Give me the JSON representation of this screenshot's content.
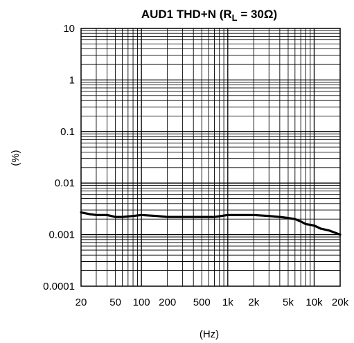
{
  "chart_data": {
    "type": "line",
    "title": {
      "prefix": "AUD1 THD+N (R",
      "subscript": "L",
      "suffix": " = 30Ω)"
    },
    "xlabel": "(Hz)",
    "ylabel": "(%)",
    "x_scale": "log",
    "y_scale": "log",
    "xlim": [
      20,
      20000
    ],
    "ylim": [
      0.0001,
      10
    ],
    "grid": true,
    "x_ticks": [
      {
        "value": 20,
        "label": "20"
      },
      {
        "value": 50,
        "label": "50"
      },
      {
        "value": 100,
        "label": "100"
      },
      {
        "value": 200,
        "label": "200"
      },
      {
        "value": 500,
        "label": "500"
      },
      {
        "value": 1000,
        "label": "1k"
      },
      {
        "value": 2000,
        "label": "2k"
      },
      {
        "value": 5000,
        "label": "5k"
      },
      {
        "value": 10000,
        "label": "10k"
      },
      {
        "value": 20000,
        "label": "20k"
      }
    ],
    "y_ticks": [
      {
        "value": 10,
        "label": "10"
      },
      {
        "value": 1,
        "label": "1"
      },
      {
        "value": 0.1,
        "label": "0.1"
      },
      {
        "value": 0.01,
        "label": "0.01"
      },
      {
        "value": 0.001,
        "label": "0.001"
      },
      {
        "value": 0.0001,
        "label": "0.0001"
      }
    ],
    "series": [
      {
        "color": "#000000",
        "x": [
          20,
          25,
          30,
          40,
          50,
          60,
          80,
          100,
          150,
          200,
          300,
          500,
          700,
          1000,
          1500,
          2000,
          3000,
          4000,
          5000,
          6000,
          7000,
          8000,
          9000,
          10000,
          12000,
          15000,
          20000
        ],
        "y": [
          0.0027,
          0.0025,
          0.0024,
          0.0024,
          0.0022,
          0.0022,
          0.0023,
          0.0024,
          0.0023,
          0.0022,
          0.0022,
          0.0022,
          0.0022,
          0.0024,
          0.0024,
          0.0024,
          0.0023,
          0.0022,
          0.0021,
          0.002,
          0.0018,
          0.0016,
          0.00155,
          0.0015,
          0.0013,
          0.0012,
          0.001
        ]
      }
    ]
  }
}
